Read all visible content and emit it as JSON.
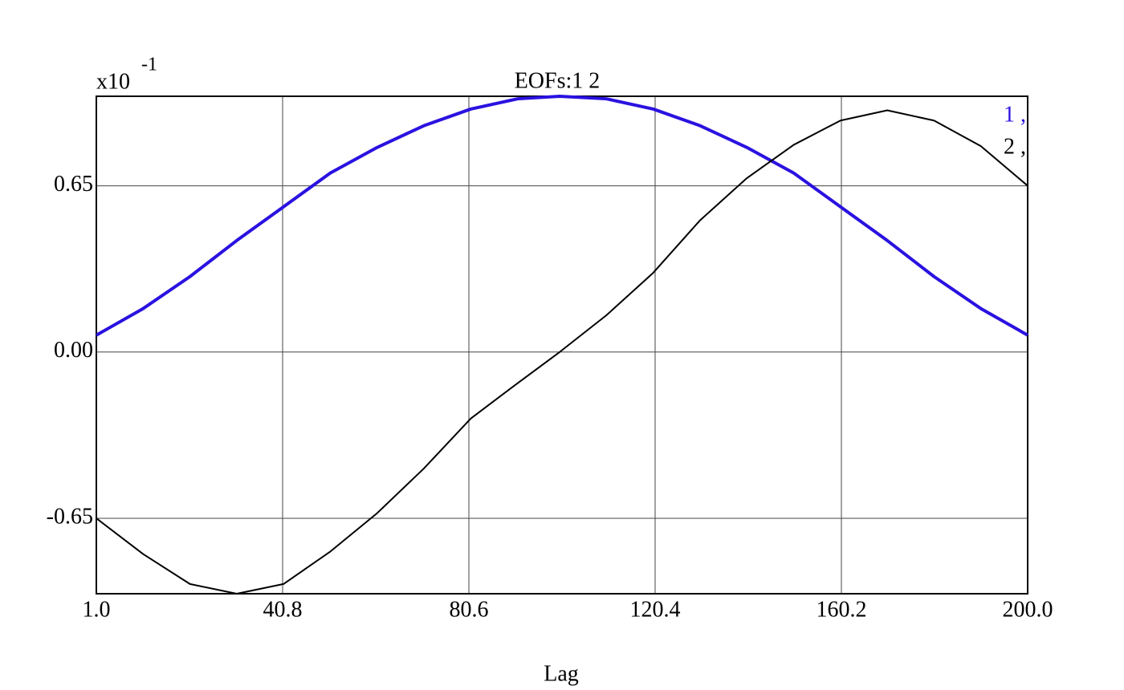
{
  "chart_data": {
    "type": "line",
    "title": "EOFs:1 2",
    "xlabel": "Lag",
    "y_multiplier": "x10",
    "y_multiplier_exponent": "-1",
    "x": [
      1,
      11,
      21,
      31,
      41,
      51,
      61,
      71,
      81,
      91,
      100,
      110,
      120,
      130,
      140,
      150,
      160,
      170,
      180,
      190,
      200
    ],
    "series": [
      {
        "name": "1 ,",
        "color": "#2a12e0",
        "values": [
          0.066,
          0.17,
          0.295,
          0.436,
          0.568,
          0.7,
          0.8,
          0.885,
          0.95,
          0.99,
          1.0,
          0.99,
          0.95,
          0.885,
          0.8,
          0.7,
          0.568,
          0.436,
          0.295,
          0.17,
          0.066
        ]
      },
      {
        "name": "2 ,",
        "color": "#000000",
        "values": [
          -0.65,
          -0.79,
          -0.907,
          -0.945,
          -0.907,
          -0.78,
          -0.63,
          -0.455,
          -0.26,
          -0.122,
          0.0,
          0.144,
          0.31,
          0.515,
          0.68,
          0.81,
          0.905,
          0.945,
          0.905,
          0.805,
          0.65
        ]
      }
    ],
    "xlim": [
      1,
      200
    ],
    "xticks": [
      {
        "value": 1,
        "label": "1.0"
      },
      40.8,
      80.6,
      120.4,
      160.2,
      {
        "value": 200,
        "label": "200.0"
      }
    ],
    "ylim": [
      -0.945,
      1.0
    ],
    "yticks": [
      -0.65,
      {
        "value": 0,
        "label": "0.00"
      },
      0.65
    ],
    "grid": true
  }
}
